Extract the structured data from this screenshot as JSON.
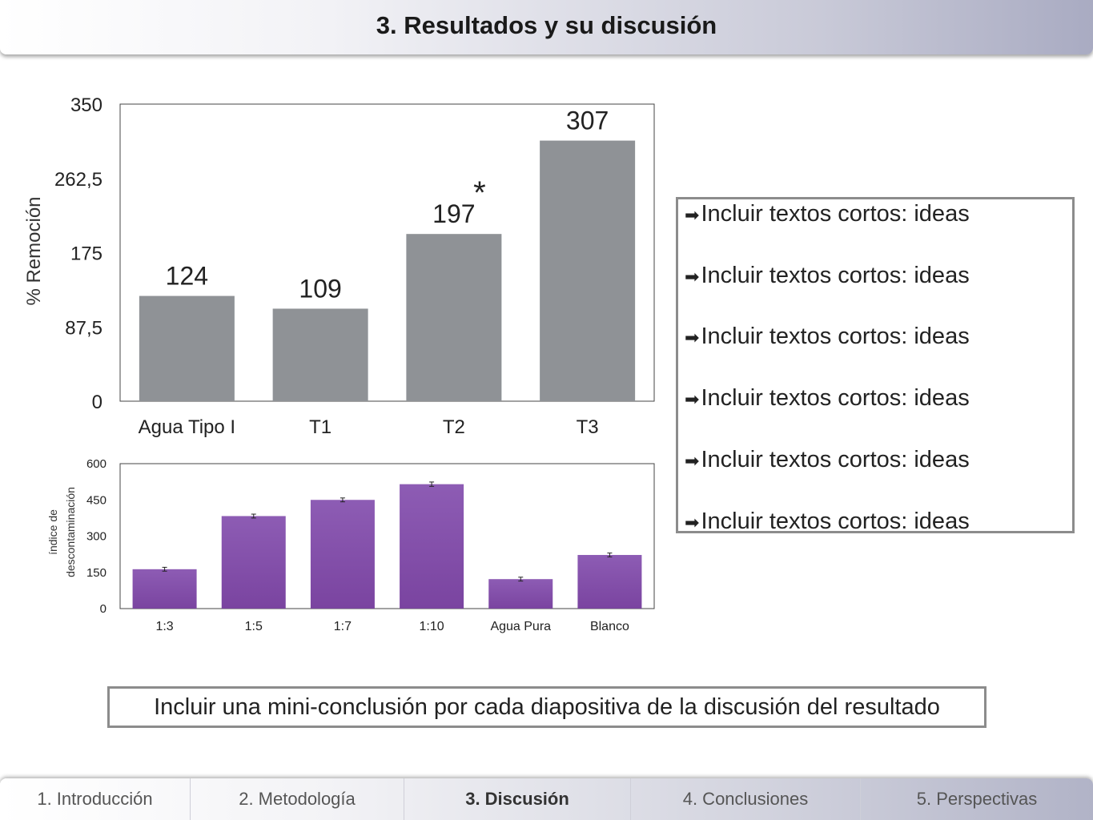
{
  "header": {
    "title": "3. Resultados y su discusión"
  },
  "chart_data": [
    {
      "type": "bar",
      "title": "",
      "xlabel": "",
      "ylabel": "% Remoción",
      "categories": [
        "Agua Tipo I",
        "T1",
        "T2",
        "T3"
      ],
      "values": [
        124,
        109,
        197,
        307
      ],
      "data_labels": [
        "124",
        "109",
        "197",
        "307"
      ],
      "yticks": [
        "0",
        "87,5",
        "175",
        "262,5",
        "350"
      ],
      "ylim": [
        0,
        350
      ],
      "annotation": "*",
      "bar_color": "#8f9296",
      "grid": false
    },
    {
      "type": "bar",
      "title": "",
      "xlabel": "",
      "ylabel_lines": [
        "índice de",
        "descontaminación"
      ],
      "categories": [
        "1:3",
        "1:5",
        "1:7",
        "1:10",
        "Agua Pura",
        "Blanco"
      ],
      "values": [
        163,
        383,
        450,
        515,
        122,
        222
      ],
      "error": [
        8,
        8,
        8,
        9,
        8,
        8
      ],
      "yticks": [
        "0",
        "150",
        "300",
        "450",
        "600"
      ],
      "ylim": [
        0,
        600
      ],
      "bar_color": "#7a44a0",
      "grid": false
    }
  ],
  "bullets": {
    "arrow": "➡",
    "items": [
      "Incluir textos cortos: ideas",
      "Incluir textos cortos: ideas",
      "Incluir textos cortos: ideas",
      "Incluir textos cortos: ideas",
      "Incluir textos cortos: ideas",
      "Incluir textos cortos: ideas"
    ]
  },
  "conclusion": "Incluir una mini-conclusión por cada diapositiva de la discusión del resultado",
  "nav": {
    "items": [
      {
        "label": "1. Introducción",
        "active": false
      },
      {
        "label": "2. Metodología",
        "active": false
      },
      {
        "label": "3. Discusión",
        "active": true
      },
      {
        "label": "4. Conclusiones",
        "active": false
      },
      {
        "label": "5. Perspectivas",
        "active": false
      }
    ]
  }
}
